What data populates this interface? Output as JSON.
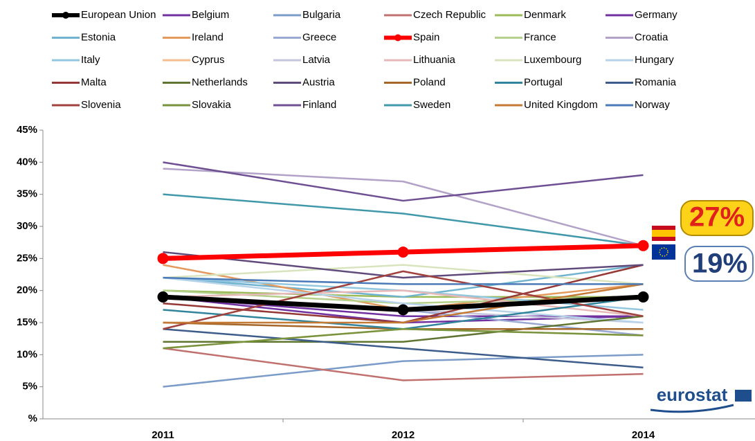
{
  "chart_data": {
    "type": "line",
    "categories": [
      "2011",
      "2012",
      "2014"
    ],
    "ylim": [
      0,
      45
    ],
    "yticks": [
      {
        "value": 0,
        "label": "%"
      },
      {
        "value": 5,
        "label": "5%"
      },
      {
        "value": 10,
        "label": "10%"
      },
      {
        "value": 15,
        "label": "15%"
      },
      {
        "value": 20,
        "label": "20%"
      },
      {
        "value": 25,
        "label": "25%"
      },
      {
        "value": 30,
        "label": "30%"
      },
      {
        "value": 35,
        "label": "35%"
      },
      {
        "value": 40,
        "label": "40%"
      },
      {
        "value": 45,
        "label": "45%"
      }
    ],
    "series": [
      {
        "name": "European Union",
        "color": "#000000",
        "values": [
          19,
          17,
          19
        ],
        "marker": true
      },
      {
        "name": "Belgium",
        "color": "#7030a0",
        "values": [
          19,
          15,
          16
        ]
      },
      {
        "name": "Bulgaria",
        "color": "#7b9bc8",
        "values": [
          5,
          9,
          10
        ]
      },
      {
        "name": "Czech Republic",
        "color": "#c0706e",
        "values": [
          11,
          6,
          7
        ]
      },
      {
        "name": "Denmark",
        "color": "#9bbb59",
        "values": [
          20,
          19,
          19
        ]
      },
      {
        "name": "Germany",
        "color": "#7030a0",
        "values": [
          19,
          16,
          16
        ]
      },
      {
        "name": "Estonia",
        "color": "#6fb3cf",
        "values": [
          22,
          19,
          24
        ]
      },
      {
        "name": "Ireland",
        "color": "#e39a5c",
        "values": [
          24,
          17,
          21
        ]
      },
      {
        "name": "Greece",
        "color": "#9aa8d4",
        "values": [
          19,
          17,
          13
        ]
      },
      {
        "name": "Spain",
        "color": "#ff0000",
        "values": [
          25,
          26,
          27
        ],
        "marker": true
      },
      {
        "name": "France",
        "color": "#b4d08a",
        "values": [
          20,
          18,
          19
        ]
      },
      {
        "name": "Croatia",
        "color": "#b3a2c7",
        "values": [
          39,
          37,
          27
        ]
      },
      {
        "name": "Italy",
        "color": "#93c7e0",
        "values": [
          22,
          20,
          17
        ]
      },
      {
        "name": "Cyprus",
        "color": "#f7bd8c",
        "values": [
          11,
          14,
          13
        ]
      },
      {
        "name": "Latvia",
        "color": "#c3c6dd",
        "values": [
          19,
          17,
          15
        ]
      },
      {
        "name": "Lithuania",
        "color": "#e6b9b8",
        "values": [
          19,
          20,
          16
        ]
      },
      {
        "name": "Luxembourg",
        "color": "#d7e4bd",
        "values": [
          22,
          24,
          21
        ]
      },
      {
        "name": "Hungary",
        "color": "#b7d3e9",
        "values": [
          22,
          18,
          15
        ]
      },
      {
        "name": "Malta",
        "color": "#953735",
        "values": [
          18,
          15,
          24
        ]
      },
      {
        "name": "Netherlands",
        "color": "#5f7530",
        "values": [
          12,
          12,
          16
        ]
      },
      {
        "name": "Austria",
        "color": "#604a7b",
        "values": [
          26,
          22,
          24
        ]
      },
      {
        "name": "Poland",
        "color": "#a6662a",
        "values": [
          15,
          14,
          14
        ]
      },
      {
        "name": "Portugal",
        "color": "#31849b",
        "values": [
          17,
          14,
          19
        ]
      },
      {
        "name": "Romania",
        "color": "#3c5c8a",
        "values": [
          14,
          11,
          8
        ]
      },
      {
        "name": "Slovenia",
        "color": "#a0413d",
        "values": [
          14,
          23,
          16
        ]
      },
      {
        "name": "Slovakia",
        "color": "#77933c",
        "values": [
          11,
          14,
          13
        ]
      },
      {
        "name": "Finland",
        "color": "#6e4f93",
        "values": [
          40,
          34,
          38
        ]
      },
      {
        "name": "Sweden",
        "color": "#4198aa",
        "values": [
          35,
          32,
          27
        ]
      },
      {
        "name": "United Kingdom",
        "color": "#c47a35",
        "values": [
          15,
          15,
          21
        ]
      },
      {
        "name": "Norway",
        "color": "#4a7ab8",
        "values": [
          22,
          21,
          21
        ]
      }
    ],
    "annotations": [
      "27%",
      "19%",
      "eurostat"
    ]
  }
}
